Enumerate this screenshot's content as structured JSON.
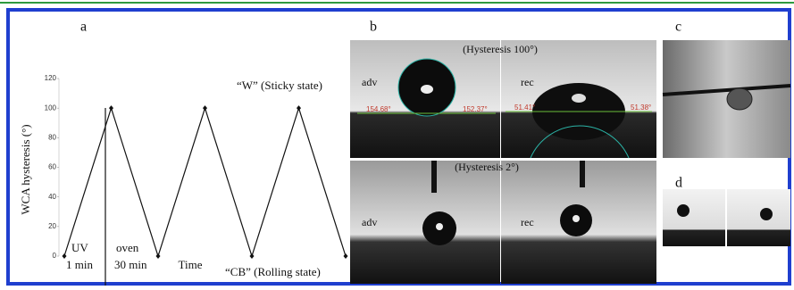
{
  "panels": {
    "a": "a",
    "b": "b",
    "c": "c",
    "d": "d"
  },
  "chart_data": {
    "type": "line",
    "y_label": "WCA hysteresis (°)",
    "x_label": "Time",
    "categories": [
      null,
      null,
      null,
      null,
      null,
      null,
      null
    ],
    "values": [
      0,
      100,
      0,
      100,
      0,
      100,
      0
    ],
    "color": "#111111",
    "ylim": [
      0,
      120
    ],
    "yticks": [
      0,
      20,
      40,
      60,
      80,
      100,
      120
    ],
    "annotations": [
      "UV",
      "1 min",
      "oven",
      "30 min",
      "“W” (Sticky state)",
      "“CB” (Rolling state)"
    ]
  },
  "photos": {
    "top_caption": "(Hysteresis 100°)",
    "top_left_label": "adv",
    "top_right_label": "rec",
    "angles": [
      "154.68°",
      "152.37°",
      "51.41°",
      "51.38°"
    ],
    "bottom_caption": "(Hysteresis 2°)",
    "bottom_left_label": "adv",
    "bottom_right_label": "rec"
  }
}
